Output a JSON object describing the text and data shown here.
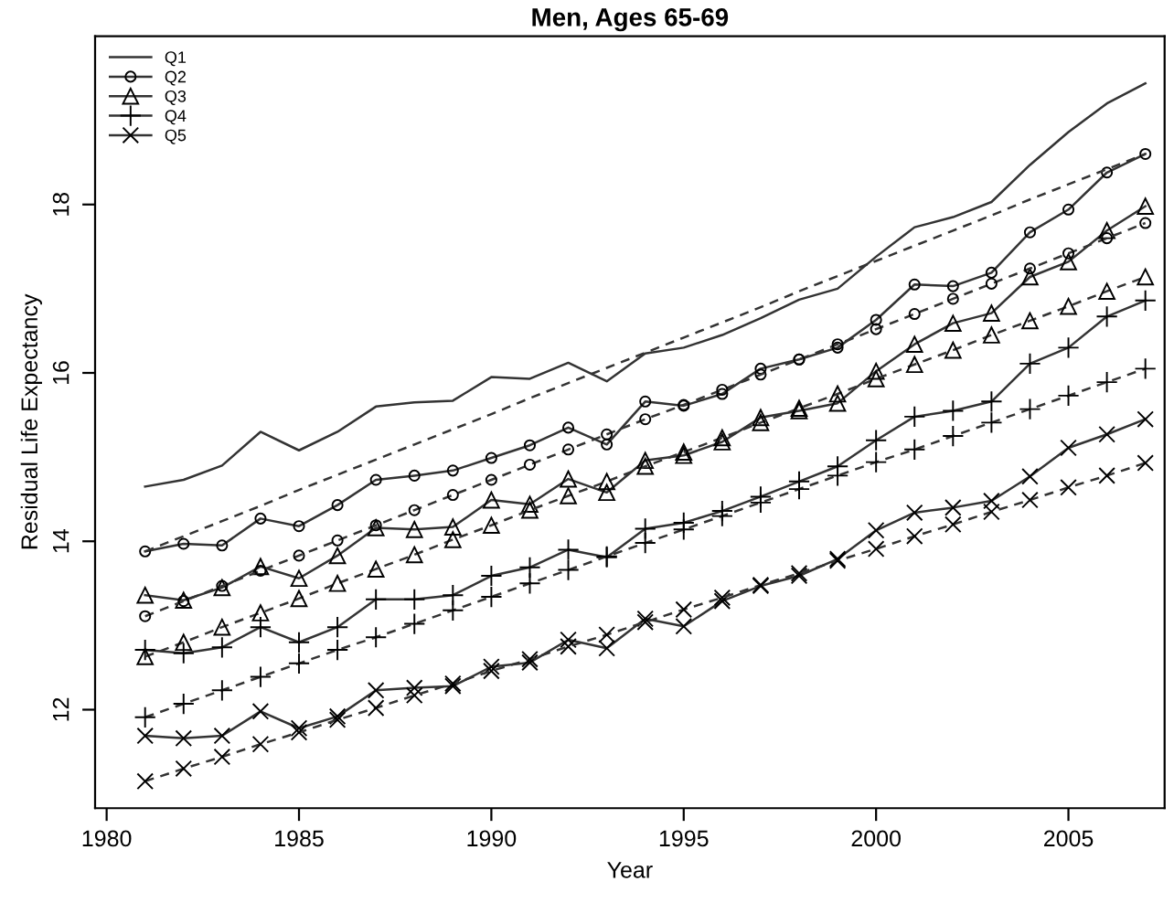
{
  "chart_data": {
    "type": "line",
    "title": "Men, Ages 65-69",
    "xlabel": "Year",
    "ylabel": "Residual Life Expectancy",
    "x": [
      1981,
      1982,
      1983,
      1984,
      1985,
      1986,
      1987,
      1988,
      1989,
      1990,
      1991,
      1992,
      1993,
      1994,
      1995,
      1996,
      1997,
      1998,
      1999,
      2000,
      2001,
      2002,
      2003,
      2004,
      2005,
      2006,
      2007
    ],
    "series": [
      {
        "name": "Q1",
        "color": "#333333",
        "marker": "none",
        "line_style": "solid",
        "values": [
          14.65,
          14.73,
          14.9,
          15.3,
          15.08,
          15.3,
          15.6,
          15.65,
          15.67,
          15.95,
          15.93,
          16.12,
          15.9,
          16.23,
          16.3,
          16.45,
          16.65,
          16.87,
          17.0,
          17.38,
          17.73,
          17.85,
          18.03,
          18.47,
          18.86,
          19.2,
          19.44
        ]
      },
      {
        "name": "Q2",
        "color": "#333333",
        "marker": "circle",
        "line_style": "solid",
        "values": [
          13.88,
          13.97,
          13.95,
          14.27,
          14.18,
          14.43,
          14.73,
          14.78,
          14.84,
          14.99,
          15.14,
          15.35,
          15.15,
          15.66,
          15.61,
          15.75,
          16.05,
          16.16,
          16.3,
          16.63,
          17.05,
          17.03,
          17.19,
          17.67,
          17.94,
          18.38,
          18.6
        ]
      },
      {
        "name": "Q3",
        "color": "#333333",
        "marker": "triangle",
        "line_style": "solid",
        "values": [
          13.36,
          13.3,
          13.45,
          13.7,
          13.56,
          13.83,
          14.16,
          14.14,
          14.17,
          14.49,
          14.44,
          14.74,
          14.58,
          14.96,
          15.02,
          15.18,
          15.47,
          15.55,
          15.64,
          16.02,
          16.34,
          16.59,
          16.71,
          17.14,
          17.32,
          17.69,
          17.98
        ]
      },
      {
        "name": "Q4",
        "color": "#333333",
        "marker": "cross",
        "line_style": "solid",
        "values": [
          12.71,
          12.67,
          12.74,
          12.98,
          12.8,
          12.98,
          13.31,
          13.31,
          13.36,
          13.59,
          13.69,
          13.9,
          13.81,
          14.15,
          14.22,
          14.36,
          14.53,
          14.71,
          14.89,
          15.2,
          15.48,
          15.55,
          15.66,
          16.11,
          16.3,
          16.67,
          16.86
        ]
      },
      {
        "name": "Q5",
        "color": "#333333",
        "marker": "x",
        "line_style": "solid",
        "values": [
          11.69,
          11.66,
          11.69,
          11.98,
          11.78,
          11.92,
          12.23,
          12.26,
          12.28,
          12.51,
          12.56,
          12.83,
          12.73,
          13.08,
          12.99,
          13.29,
          13.47,
          13.59,
          13.79,
          14.13,
          14.34,
          14.4,
          14.48,
          14.77,
          15.11,
          15.27,
          15.45
        ]
      },
      {
        "color": "#333333",
        "marker": "none",
        "line_style": "dashed",
        "values": [
          13.88,
          14.06,
          14.24,
          14.42,
          14.61,
          14.79,
          14.97,
          15.15,
          15.33,
          15.51,
          15.7,
          15.88,
          16.06,
          16.24,
          16.42,
          16.6,
          16.78,
          16.97,
          17.15,
          17.33,
          17.51,
          17.69,
          17.87,
          18.06,
          18.24,
          18.42,
          18.6
        ]
      },
      {
        "color": "#333333",
        "marker": "circle",
        "line_style": "dashed",
        "values": [
          13.11,
          13.29,
          13.47,
          13.65,
          13.83,
          14.01,
          14.19,
          14.37,
          14.55,
          14.73,
          14.91,
          15.09,
          15.27,
          15.45,
          15.62,
          15.8,
          15.98,
          16.16,
          16.34,
          16.52,
          16.7,
          16.88,
          17.06,
          17.24,
          17.42,
          17.6,
          17.78
        ]
      },
      {
        "color": "#333333",
        "marker": "triangle",
        "line_style": "dashed",
        "values": [
          12.63,
          12.8,
          12.98,
          13.15,
          13.32,
          13.5,
          13.67,
          13.84,
          14.02,
          14.19,
          14.37,
          14.54,
          14.71,
          14.89,
          15.06,
          15.23,
          15.41,
          15.58,
          15.75,
          15.93,
          16.1,
          16.27,
          16.45,
          16.62,
          16.79,
          16.97,
          17.14
        ]
      },
      {
        "color": "#333333",
        "marker": "cross",
        "line_style": "dashed",
        "values": [
          11.91,
          12.07,
          12.23,
          12.39,
          12.55,
          12.71,
          12.86,
          13.02,
          13.18,
          13.34,
          13.5,
          13.66,
          13.82,
          13.98,
          14.14,
          14.3,
          14.46,
          14.62,
          14.78,
          14.94,
          15.09,
          15.25,
          15.41,
          15.57,
          15.73,
          15.89,
          16.05
        ]
      },
      {
        "color": "#333333",
        "marker": "x",
        "line_style": "dashed",
        "values": [
          11.15,
          11.3,
          11.44,
          11.59,
          11.73,
          11.88,
          12.02,
          12.17,
          12.31,
          12.46,
          12.6,
          12.75,
          12.89,
          13.04,
          13.19,
          13.33,
          13.48,
          13.62,
          13.77,
          13.91,
          14.06,
          14.2,
          14.35,
          14.49,
          14.64,
          14.78,
          14.93
        ]
      }
    ],
    "xlim": [
      1979.7,
      2007.5
    ],
    "ylim": [
      10.83,
      20.0
    ],
    "xticks": [
      1980,
      1985,
      1990,
      1995,
      2000,
      2005
    ],
    "yticks": [
      12,
      14,
      16,
      18
    ],
    "grid": false,
    "legend": "top left"
  }
}
